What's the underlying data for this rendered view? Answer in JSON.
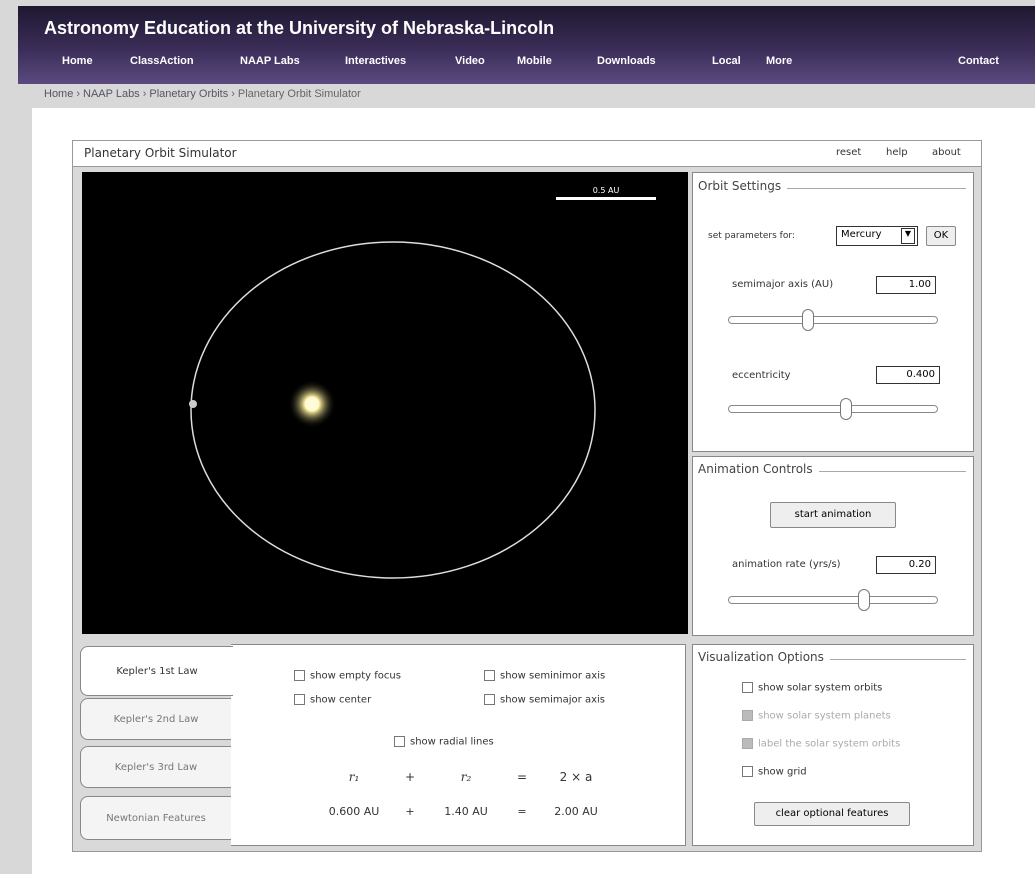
{
  "header": {
    "title": "Astronomy Education at the University of Nebraska-Lincoln",
    "nav": [
      "Home",
      "ClassAction",
      "NAAP Labs",
      "Interactives",
      "Video",
      "Mobile",
      "Downloads",
      "Local",
      "More",
      "Contact"
    ]
  },
  "breadcrumb": [
    "Home",
    "NAAP Labs",
    "Planetary Orbits",
    "Planetary Orbit Simulator"
  ],
  "simulator": {
    "title": "Planetary Orbit Simulator",
    "links": [
      "reset",
      "help",
      "about"
    ]
  },
  "canvas": {
    "scale_label": "0.5 AU"
  },
  "orbit_settings": {
    "title": "Orbit Settings",
    "set_parameters_label": "set parameters for:",
    "planet": "Mercury",
    "ok": "OK",
    "semimajor_label": "semimajor axis (AU)",
    "semimajor_value": "1.00",
    "eccentricity_label": "eccentricity",
    "eccentricity_value": "0.400"
  },
  "animation_controls": {
    "title": "Animation Controls",
    "button": "start animation",
    "rate_label": "animation rate (yrs/s)",
    "rate_value": "0.20"
  },
  "visualization_options": {
    "title": "Visualization Options",
    "options": [
      "show solar system orbits",
      "show solar system planets",
      "label the solar system orbits",
      "show grid"
    ],
    "button": "clear optional features"
  },
  "tabs": [
    "Kepler's 1st Law",
    "Kepler's 2nd Law",
    "Kepler's 3rd Law",
    "Newtonian Features"
  ],
  "kepler1": {
    "checkboxes": [
      "show empty focus",
      "show seminimor axis",
      "show center",
      "show semimajor axis",
      "show radial lines"
    ],
    "equation": [
      "r₁",
      "+",
      "r₂",
      "=",
      "2 × a"
    ],
    "values": [
      "0.600 AU",
      "+",
      "1.40 AU",
      "=",
      "2.00 AU"
    ]
  }
}
